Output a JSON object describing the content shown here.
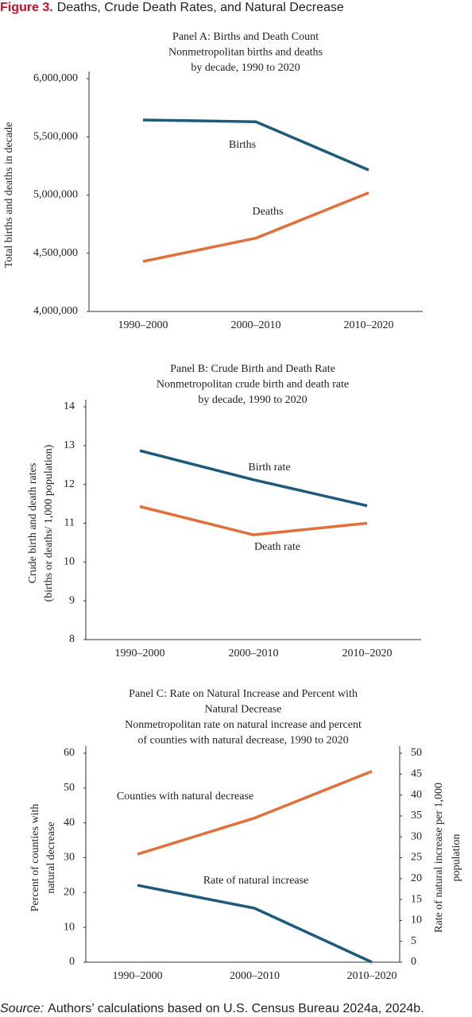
{
  "header": {
    "label": "Figure 3.",
    "title": "Deaths, Crude Death Rates, and Natural Decrease"
  },
  "chart_data": [
    {
      "type": "line",
      "title_lines": [
        "Panel A: Births and Death Count",
        "Nonmetropolitan births and deaths",
        "by decade, 1990 to 2020"
      ],
      "ylabel": [
        "Total births and deaths in decade"
      ],
      "categories": [
        "1990–2000",
        "2000–2010",
        "2010–2020"
      ],
      "ylim": [
        4000000,
        6000000
      ],
      "yticks": [
        {
          "value": 4000000,
          "label": "4,000,000"
        },
        {
          "value": 4500000,
          "label": "4,500,000"
        },
        {
          "value": 5000000,
          "label": "5,000,000"
        },
        {
          "value": 5500000,
          "label": "5,500,000"
        },
        {
          "value": 6000000,
          "label": "6,000,000"
        }
      ],
      "series": [
        {
          "name": "Births",
          "color": "#1d5a7b",
          "values": [
            5645000,
            5630000,
            5215000
          ]
        },
        {
          "name": "Deaths",
          "color": "#e2703a",
          "values": [
            4430000,
            4630000,
            5020000
          ]
        }
      ]
    },
    {
      "type": "line",
      "title_lines": [
        "Panel B: Crude Birth and Death Rate",
        "Nonmetropolitan crude birth and death rate",
        "by decade, 1990 to 2020"
      ],
      "ylabel": [
        "Crude birth and death rates",
        "(births or deaths/ 1,000 population)"
      ],
      "categories": [
        "1990–2000",
        "2000–2010",
        "2010–2020"
      ],
      "ylim": [
        8,
        14
      ],
      "yticks": [
        8,
        9,
        10,
        11,
        12,
        13,
        14
      ],
      "series": [
        {
          "name": "Birth rate",
          "color": "#1d5a7b",
          "values": [
            12.87,
            12.12,
            11.45
          ]
        },
        {
          "name": "Death rate",
          "color": "#e2703a",
          "values": [
            11.43,
            10.7,
            11.0
          ]
        }
      ]
    },
    {
      "type": "line",
      "title_lines": [
        "Panel C: Rate on Natural Increase and Percent with",
        "Natural Decrease",
        "Nonmetropolitan rate on natural increase and percent",
        "of counties with natural decrease, 1990 to 2020"
      ],
      "ylabel": [
        "Percent of counties with",
        "natural decrease"
      ],
      "y2label": [
        "Rate of natural increase per 1,000",
        "population"
      ],
      "categories": [
        "1990–2000",
        "2000–2010",
        "2010–2020"
      ],
      "ylim": [
        0,
        60
      ],
      "yticks": [
        0,
        10,
        20,
        30,
        40,
        50,
        60
      ],
      "y2lim": [
        0,
        50
      ],
      "y2ticks": [
        0,
        5,
        10,
        15,
        20,
        25,
        30,
        35,
        40,
        45,
        50
      ],
      "series": [
        {
          "name": "Counties with natural decrease",
          "color": "#e2703a",
          "values": [
            31,
            41.4,
            54.8
          ]
        },
        {
          "name": "Rate of natural increase",
          "color": "#1d5a7b",
          "axis": "y2",
          "values": [
            18.4,
            12.9,
            0
          ]
        }
      ]
    }
  ],
  "footer": {
    "source_label": "Source:",
    "text": "Authors’ calculations based on U.S. Census Bureau 2024a, 2024b."
  }
}
